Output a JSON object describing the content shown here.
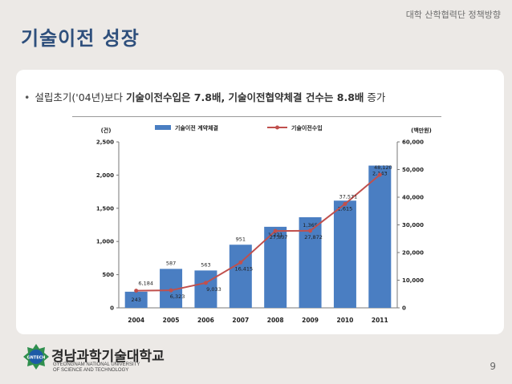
{
  "header": {
    "subtitle": "대학 산학협력단 정책방향"
  },
  "page_title": "기술이전 성장",
  "bullet": {
    "pre": "설립초기('04년)보다 ",
    "bold1": "기술이전수입은 7.8배, 기술이전협약체결 건수는 8.8배",
    "post": " 증가"
  },
  "chart_data": {
    "type": "bar+line",
    "categories": [
      "2004",
      "2005",
      "2006",
      "2007",
      "2008",
      "2009",
      "2010",
      "2011"
    ],
    "series": [
      {
        "name": "기술이전 계약체결",
        "axis": "left",
        "kind": "bar",
        "color": "#4a7ec2",
        "values": [
          243,
          587,
          563,
          951,
          1221,
          1365,
          1615,
          2143
        ]
      },
      {
        "name": "기술이전수입",
        "axis": "right",
        "kind": "line",
        "color": "#c0504d",
        "values": [
          6184,
          6323,
          9033,
          16415,
          27807,
          27872,
          37571,
          48120
        ]
      }
    ],
    "left_axis": {
      "label": "(건)",
      "ylim": [
        0,
        2500
      ],
      "ticks": [
        "0",
        "500",
        "1,000",
        "1,500",
        "2,000",
        "2,500"
      ]
    },
    "right_axis": {
      "label": "(백만원)",
      "ylim": [
        0,
        60000
      ],
      "ticks": [
        "0",
        "10,000",
        "20,000",
        "30,000",
        "40,000",
        "50,000",
        "60,000"
      ]
    },
    "bar_labels_top": [
      "",
      "587",
      "563",
      "951",
      "",
      "",
      "",
      ""
    ],
    "bar_labels_inner": [
      "243",
      "",
      "",
      "",
      "1,221",
      "1,365",
      "1,615",
      "2,143"
    ],
    "line_labels": [
      "6,184",
      "6,323",
      "9,033",
      "16,415",
      "27,807",
      "27,872",
      "37,571",
      "48,120"
    ]
  },
  "footer": {
    "univ_ko": "경남과학기술대학교",
    "univ_en1": "GYEONGNAM NATIONAL UNIVERSITY",
    "univ_en2": "OF SCIENCE AND TECHNOLOGY",
    "logo_text": "GNTECH"
  },
  "page_number": "9",
  "colors": {
    "title": "#2e4f7c",
    "bar": "#4a7ec2",
    "line": "#c0504d"
  }
}
